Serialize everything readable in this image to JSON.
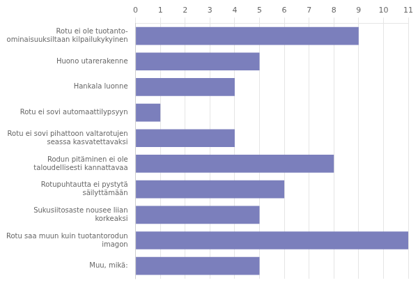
{
  "chart_data": {
    "type": "bar",
    "orientation": "horizontal",
    "categories": [
      "Muu, mikä:",
      "Rotu saa muun kuin tuotantorodun\nimagon",
      "Sukusiitosaste nousee liian\nkorkeaksi",
      "Rotupuhtautta ei pystytä\nsäilyttämään",
      "Rodun pitäminen ei ole\ntaloudellisesti kannattavaa",
      "Rotu ei sovi pihattoon valtarotujen\nseassa kasvatettavaksi",
      "Rotu ei sovi automaattilypsyyn",
      "Hankala luonne",
      "Huono utarerakenne",
      "Rotu ei ole tuotanto-\nominaisuuksiltaan kilpailukykyinen"
    ],
    "values": [
      5,
      11,
      5,
      6,
      8,
      4,
      1,
      4,
      5,
      9
    ],
    "color": "#7b7fbc",
    "xlim": [
      0,
      11
    ],
    "xticks": [
      0,
      1,
      2,
      3,
      4,
      5,
      6,
      7,
      8,
      9,
      10,
      11
    ],
    "grid": true
  }
}
